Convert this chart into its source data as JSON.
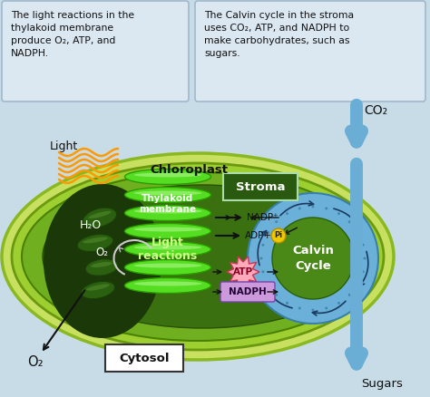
{
  "background_color": "#c8dce8",
  "box1_text": "The light reactions in the\nthylakoid membrane\nproduce O₂, ATP, and\nNADPH.",
  "box2_text": "The Calvin cycle in the stroma\nuses CO₂, ATP, and NADPH to\nmake carbohydrates, such as\nsugars.",
  "chloroplast_label": "Chloroplast",
  "stroma_label": "Stroma",
  "thylakoid_label": "Thylakoid\nmembrane",
  "light_reactions_label": "Light\nreactions",
  "calvin_cycle_label": "Calvin\nCycle",
  "cytosol_label": "Cytosol",
  "light_label": "Light",
  "h2o_label": "H₂O",
  "o2_label1": "O₂",
  "o2_label2": "O₂",
  "co2_label": "CO₂",
  "sugars_label": "Sugars",
  "nadp_label": "NADP⁺",
  "adp_label": "ADP+",
  "pi_label": "Pi",
  "atp_label": "ATP",
  "nadph_label": "NADPH",
  "arrow_color": "#6aadd5"
}
